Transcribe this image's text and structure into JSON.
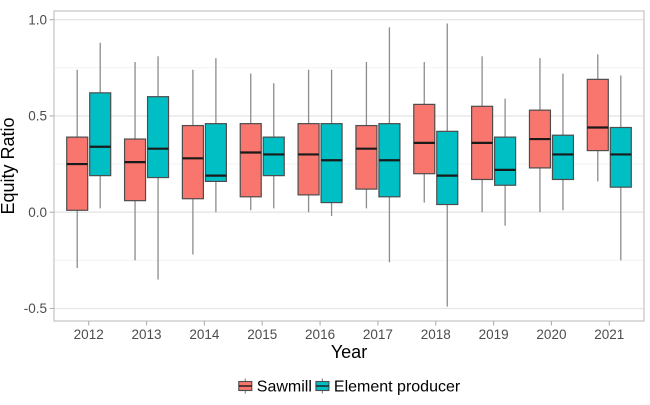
{
  "chart_data": {
    "type": "boxplot",
    "title": "",
    "xlabel": "Year",
    "ylabel": "Equity Ratio",
    "categories": [
      "2012",
      "2013",
      "2014",
      "2015",
      "2016",
      "2017",
      "2018",
      "2019",
      "2020",
      "2021"
    ],
    "y_tick_values": [
      1.0,
      0.5,
      0.0,
      -0.5
    ],
    "y_tick_labels": [
      "1.0",
      "0.5",
      "0.0",
      "-0.5"
    ],
    "y_minor_tick_values": [
      0.75,
      0.25,
      -0.25
    ],
    "ylim": [
      -0.565,
      1.045
    ],
    "grid": true,
    "legend_position": "bottom",
    "colors": {
      "sawmill": "#F8766D",
      "element_producer": "#00BFC4",
      "box_outline": "#4d4d4d",
      "median_line": "#1a1a1a",
      "whisker": "#8c8c8c",
      "panel_border": "#c3c3c3",
      "grid_major": "#e6e6e6",
      "grid_minor": "#f3f3f3",
      "axis_text": "#4d4d4d",
      "axis_title": "#000000"
    },
    "series": [
      {
        "name": "Sawmill",
        "color": "#F8766D",
        "boxes": [
          {
            "low": -0.29,
            "q1": 0.01,
            "median": 0.25,
            "q3": 0.39,
            "high": 0.74
          },
          {
            "low": -0.25,
            "q1": 0.06,
            "median": 0.26,
            "q3": 0.38,
            "high": 0.78
          },
          {
            "low": -0.22,
            "q1": 0.07,
            "median": 0.28,
            "q3": 0.45,
            "high": 0.74
          },
          {
            "low": 0.01,
            "q1": 0.08,
            "median": 0.31,
            "q3": 0.46,
            "high": 0.72
          },
          {
            "low": 0.0,
            "q1": 0.09,
            "median": 0.3,
            "q3": 0.46,
            "high": 0.74
          },
          {
            "low": 0.02,
            "q1": 0.12,
            "median": 0.33,
            "q3": 0.45,
            "high": 0.78
          },
          {
            "low": 0.05,
            "q1": 0.2,
            "median": 0.36,
            "q3": 0.56,
            "high": 0.78
          },
          {
            "low": 0.0,
            "q1": 0.17,
            "median": 0.36,
            "q3": 0.55,
            "high": 0.81
          },
          {
            "low": 0.0,
            "q1": 0.23,
            "median": 0.38,
            "q3": 0.53,
            "high": 0.8
          },
          {
            "low": 0.16,
            "q1": 0.32,
            "median": 0.44,
            "q3": 0.69,
            "high": 0.82
          }
        ]
      },
      {
        "name": "Element producer",
        "color": "#00BFC4",
        "boxes": [
          {
            "low": 0.02,
            "q1": 0.19,
            "median": 0.34,
            "q3": 0.62,
            "high": 0.88
          },
          {
            "low": -0.35,
            "q1": 0.18,
            "median": 0.33,
            "q3": 0.6,
            "high": 0.81
          },
          {
            "low": 0.0,
            "q1": 0.16,
            "median": 0.19,
            "q3": 0.46,
            "high": 0.8
          },
          {
            "low": 0.02,
            "q1": 0.19,
            "median": 0.3,
            "q3": 0.39,
            "high": 0.67
          },
          {
            "low": -0.02,
            "q1": 0.05,
            "median": 0.27,
            "q3": 0.46,
            "high": 0.74
          },
          {
            "low": -0.26,
            "q1": 0.08,
            "median": 0.27,
            "q3": 0.46,
            "high": 0.96
          },
          {
            "low": -0.49,
            "q1": 0.04,
            "median": 0.19,
            "q3": 0.42,
            "high": 0.98
          },
          {
            "low": -0.07,
            "q1": 0.14,
            "median": 0.22,
            "q3": 0.39,
            "high": 0.59
          },
          {
            "low": 0.01,
            "q1": 0.17,
            "median": 0.3,
            "q3": 0.4,
            "high": 0.72
          },
          {
            "low": -0.25,
            "q1": 0.13,
            "median": 0.3,
            "q3": 0.44,
            "high": 0.71
          }
        ]
      }
    ]
  }
}
